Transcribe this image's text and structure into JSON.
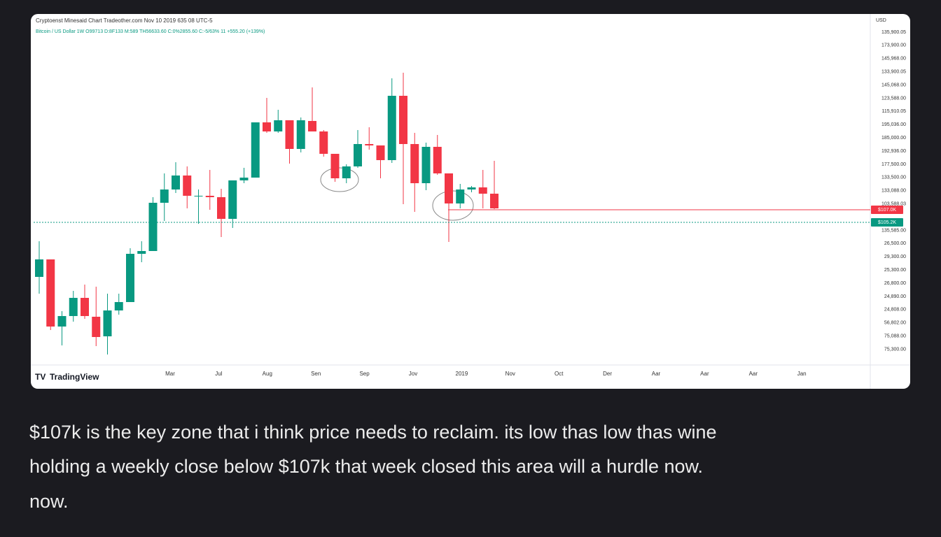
{
  "chart_data": {
    "type": "candlestick",
    "title": "Cryptoenst Minesaid Chart Tradeother.com Nov 10 2019 635 08 UTC-5",
    "symbol_line": "Bitcoin / US Dollar 1W  O99713 D:8F133 M:589 TH56633.60 C:0%2855.60 C:-5/63% 11 +555.20 (+139%)",
    "currency": "USD",
    "up_color": "#089981",
    "down_color": "#f23645",
    "ylim": [
      84000,
      134000
    ],
    "open": [
      97400,
      99900,
      90300,
      91800,
      94400,
      91700,
      88900,
      92600,
      93800,
      100700,
      101100,
      108000,
      109900,
      111900,
      108900,
      109000,
      108800,
      105700,
      111200,
      111600,
      119500,
      118200,
      119800,
      115700,
      119700,
      118200,
      115000,
      111500,
      113200,
      116400,
      116200,
      114100,
      123300,
      116400,
      110800,
      116000,
      112200,
      107900,
      109900,
      110200,
      109300
    ],
    "high": [
      102500,
      99900,
      92500,
      95400,
      96300,
      96000,
      95000,
      95000,
      101500,
      102500,
      108800,
      112200,
      113800,
      113200,
      109900,
      112700,
      110000,
      111200,
      113000,
      119500,
      123000,
      121300,
      119800,
      120200,
      124500,
      118400,
      115000,
      113500,
      118400,
      118800,
      116200,
      125800,
      126600,
      118000,
      116600,
      117700,
      112200,
      110700,
      110400,
      112700,
      114000
    ],
    "low": [
      95000,
      89800,
      87600,
      91000,
      91400,
      87500,
      86300,
      92000,
      93800,
      99500,
      101100,
      105400,
      109400,
      107200,
      105000,
      107000,
      103100,
      104400,
      110800,
      111600,
      118000,
      118000,
      113600,
      115200,
      118200,
      114600,
      111000,
      110800,
      113000,
      115600,
      111500,
      113700,
      107800,
      106700,
      109800,
      112000,
      102400,
      107200,
      109500,
      107200,
      107100
    ],
    "close": [
      99900,
      90300,
      91800,
      94400,
      91800,
      88800,
      92600,
      93800,
      100700,
      101100,
      108000,
      109900,
      111900,
      109000,
      109000,
      108800,
      105700,
      111200,
      111600,
      119500,
      118200,
      119800,
      115700,
      119800,
      118200,
      115000,
      111500,
      113200,
      116400,
      116200,
      114100,
      123300,
      116400,
      110800,
      116000,
      112200,
      107900,
      109900,
      110200,
      109300,
      107200
    ],
    "price_axis_labels": [
      "135,900.05",
      "173,900.00",
      "145,968.00",
      "133,900.05",
      "145,068.00",
      "123,588.00",
      "115,910.05",
      "195,036.00",
      "185,000.00",
      "192,936.00",
      "177,500.00",
      "133,500.00",
      "133,088.00",
      "103,588.03",
      "135,585.00",
      "26,500.00",
      "29,300.00",
      "25,300.00",
      "26,800.00",
      "24,890.00",
      "24,808.00",
      "56,802.00",
      "75,088.00",
      "75,300.00"
    ],
    "time_axis_labels": [
      "Mar",
      "Jul",
      "Aug",
      "Sen",
      "Sep",
      "Jov",
      "2019",
      "Nov",
      "Oct",
      "Der",
      "Aar",
      "Aar",
      "Aar",
      "Jan"
    ],
    "levels": [
      {
        "value": 107000,
        "label": "$107.0K",
        "color": "#f23645",
        "style": "solid"
      },
      {
        "value": 105200,
        "label": "$105.2K",
        "color": "#089981",
        "style": "dotted"
      }
    ],
    "brand": "TradingView"
  },
  "caption": {
    "lines": [
      "$107k is the key zone that i think price needs to reclaim. its low thas low thas wine",
      "holding a weekly close below $107k that week closed this area will a hurdle now.",
      "now."
    ]
  }
}
